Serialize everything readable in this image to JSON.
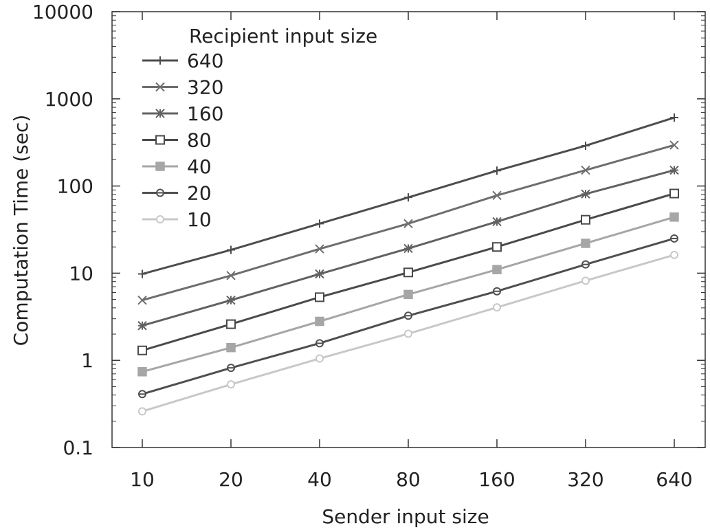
{
  "chart_data": {
    "type": "line",
    "title": "",
    "xlabel": "Sender input size",
    "ylabel": "Computation  Time (sec)",
    "x_scale": "log2",
    "y_scale": "log10",
    "categories": [
      "10",
      "20",
      "40",
      "80",
      "160",
      "320",
      "640"
    ],
    "x": [
      10,
      20,
      40,
      80,
      160,
      320,
      640
    ],
    "ylim": [
      0.1,
      10000
    ],
    "y_ticks": [
      0.1,
      1,
      10,
      100,
      1000,
      10000
    ],
    "y_tick_labels": [
      "0.1",
      "1",
      "10",
      "100",
      "1000",
      "10000"
    ],
    "grid": false,
    "legend": {
      "title": "Recipient input size",
      "position": "top-left"
    },
    "series": [
      {
        "name": "640",
        "marker": "plus",
        "color": "#4d4d4d",
        "values": [
          9.8,
          18.5,
          37,
          74,
          150,
          290,
          610
        ]
      },
      {
        "name": "320",
        "marker": "cross",
        "color": "#6e6e6e",
        "values": [
          4.9,
          9.4,
          19,
          37,
          78,
          152,
          295
        ]
      },
      {
        "name": "160",
        "marker": "star",
        "color": "#616161",
        "values": [
          2.5,
          4.9,
          9.8,
          19.2,
          39,
          81,
          152
        ]
      },
      {
        "name": "80",
        "marker": "square-open",
        "color": "#4a4a4a",
        "values": [
          1.3,
          2.6,
          5.3,
          10.2,
          20,
          41,
          82
        ]
      },
      {
        "name": "40",
        "marker": "square-filled",
        "color": "#a6a6a6",
        "values": [
          0.74,
          1.4,
          2.8,
          5.7,
          11,
          22,
          44
        ]
      },
      {
        "name": "20",
        "marker": "circle-dot",
        "color": "#4f4f4f",
        "values": [
          0.41,
          0.82,
          1.57,
          3.25,
          6.2,
          12.6,
          25
        ]
      },
      {
        "name": "10",
        "marker": "circle-open",
        "color": "#c8c8c8",
        "values": [
          0.26,
          0.53,
          1.05,
          2.02,
          4.05,
          8.2,
          16.2
        ]
      }
    ]
  }
}
